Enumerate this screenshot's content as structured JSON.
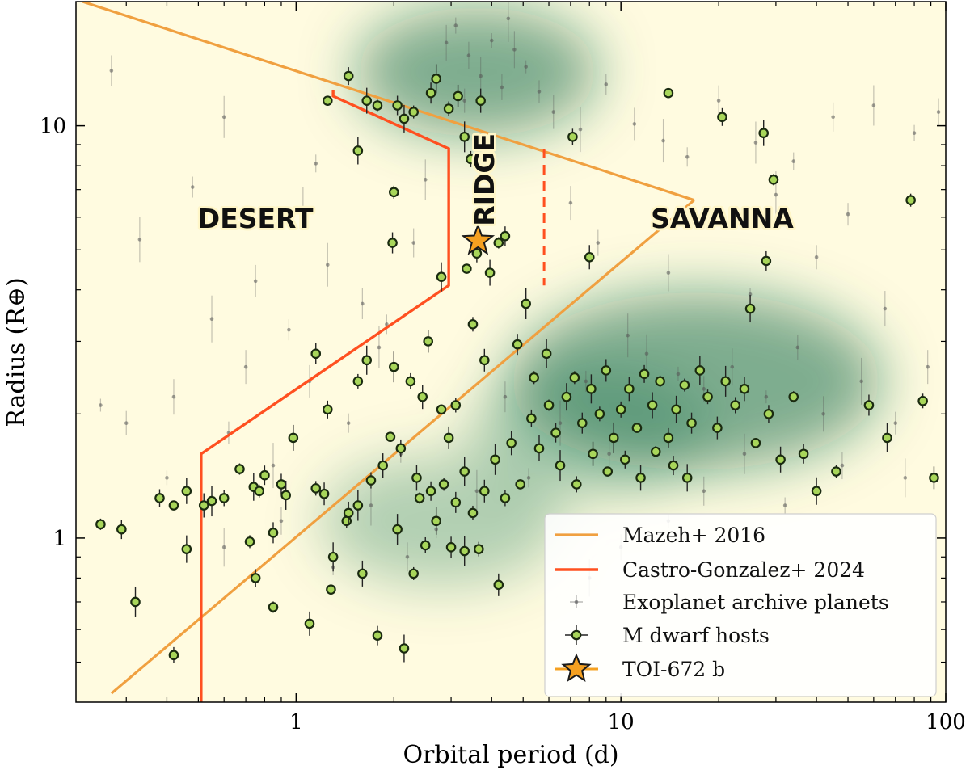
{
  "chart_data": {
    "type": "scatter",
    "xlabel": "Orbital period (d)",
    "ylabel": "Radius (R⊕)",
    "xscale": "log",
    "yscale": "log",
    "xlim": [
      0.21,
      100
    ],
    "ylim": [
      0.4,
      20
    ],
    "xticks": [
      {
        "value": 1,
        "label": "1"
      },
      {
        "value": 10,
        "label": "10"
      },
      {
        "value": 100,
        "label": "100"
      }
    ],
    "yticks": [
      {
        "value": 1,
        "label": "1"
      },
      {
        "value": 10,
        "label": "10"
      }
    ],
    "grid": false,
    "legend_position": "bottom-right",
    "colors": {
      "background": "#fffbe0",
      "mazeh": "#f0a040",
      "castro": "#ff5020",
      "archive": "#555555",
      "mdwarf_fill": "#a8d65a",
      "mdwarf_edge": "#1a2a10",
      "star": "#f5a020",
      "density": "#0e6b4a"
    },
    "region_labels": [
      {
        "text": "DESERT",
        "x": 0.75,
        "y": 5.9,
        "rotate": 0
      },
      {
        "text": "RIDGE",
        "x": 3.85,
        "y": 7.4,
        "rotate": -90
      },
      {
        "text": "SAVANNA",
        "x": 20.5,
        "y": 5.9,
        "rotate": 0
      }
    ],
    "series": [
      {
        "name": "Mazeh+ 2016",
        "kind": "boundary",
        "segments": [
          [
            [
              0.22,
              20
            ],
            [
              16.8,
              6.6
            ]
          ],
          [
            [
              16.8,
              6.6
            ],
            [
              0.27,
              0.42
            ]
          ]
        ]
      },
      {
        "name": "Castro-Gonzalez+ 2024",
        "kind": "boundary",
        "segments": [
          [
            [
              1.3,
              12.2
            ],
            [
              1.3,
              11.8
            ],
            [
              2.95,
              8.8
            ],
            [
              2.95,
              4.1
            ],
            [
              0.51,
              1.6
            ],
            [
              0.51,
              0.4
            ]
          ]
        ],
        "dashed_segment": [
          [
            5.8,
            8.8
          ],
          [
            5.8,
            4.1
          ]
        ]
      },
      {
        "name": "Exoplanet archive planets",
        "kind": "points",
        "density_clusters": [
          {
            "x": 3.6,
            "y": 13.5
          },
          {
            "x": 17,
            "y": 2.4
          },
          {
            "x": 8,
            "y": 1.8
          },
          {
            "x": 2.8,
            "y": 1.1
          }
        ],
        "points": [
          [
            0.25,
            2.1
          ],
          [
            0.3,
            1.9
          ],
          [
            0.42,
            2.2
          ],
          [
            0.55,
            3.4
          ],
          [
            0.62,
            1.8
          ],
          [
            0.7,
            2.6
          ],
          [
            0.85,
            1.5
          ],
          [
            0.95,
            3.2
          ],
          [
            1.1,
            2.4
          ],
          [
            1.25,
            4.6
          ],
          [
            1.45,
            1.9
          ],
          [
            1.6,
            3.7
          ],
          [
            1.8,
            2.9
          ],
          [
            2.1,
            1.6
          ],
          [
            2.3,
            5.2
          ],
          [
            2.5,
            7.4
          ],
          [
            3.1,
            17.5
          ],
          [
            3.4,
            14.8
          ],
          [
            3.7,
            13.2
          ],
          [
            4.0,
            16.1
          ],
          [
            4.3,
            12.4
          ],
          [
            4.7,
            15.3
          ],
          [
            5.1,
            13.9
          ],
          [
            3.3,
            11.5
          ],
          [
            2.9,
            15.9
          ],
          [
            4.5,
            18.2
          ],
          [
            5.6,
            12.1
          ],
          [
            6.2,
            10.8
          ],
          [
            7.5,
            9.8
          ],
          [
            9.0,
            12.6
          ],
          [
            11.0,
            10.1
          ],
          [
            13.5,
            9.2
          ],
          [
            16.0,
            8.4
          ],
          [
            20.0,
            11.5
          ],
          [
            26.0,
            9.1
          ],
          [
            34.0,
            8.2
          ],
          [
            45.0,
            10.5
          ],
          [
            60.0,
            11.2
          ],
          [
            80.0,
            9.6
          ],
          [
            95.0,
            10.8
          ],
          [
            12.0,
            2.8
          ],
          [
            15.0,
            2.5
          ],
          [
            18.0,
            2.3
          ],
          [
            22.0,
            2.6
          ],
          [
            28.0,
            2.2
          ],
          [
            35.0,
            2.9
          ],
          [
            42.0,
            2.0
          ],
          [
            55.0,
            2.4
          ],
          [
            70.0,
            1.9
          ],
          [
            88.0,
            2.6
          ],
          [
            6.5,
            1.9
          ],
          [
            7.8,
            2.4
          ],
          [
            9.2,
            1.6
          ],
          [
            10.5,
            3.1
          ],
          [
            5.2,
            1.4
          ],
          [
            4.4,
            2.2
          ],
          [
            3.6,
            1.3
          ],
          [
            2.7,
            1.05
          ],
          [
            2.2,
            0.9
          ],
          [
            1.7,
            1.2
          ],
          [
            1.3,
            0.85
          ],
          [
            0.9,
            1.1
          ],
          [
            0.6,
            0.95
          ],
          [
            0.4,
            1.4
          ],
          [
            8.5,
            5.2
          ],
          [
            14.0,
            4.4
          ],
          [
            25.0,
            3.9
          ],
          [
            40.0,
            4.8
          ],
          [
            65.0,
            3.6
          ],
          [
            30.0,
            6.8
          ],
          [
            50.0,
            6.1
          ],
          [
            7.0,
            6.5
          ],
          [
            0.33,
            5.3
          ],
          [
            0.48,
            7.1
          ],
          [
            0.75,
            4.2
          ],
          [
            1.05,
            6.3
          ],
          [
            1.9,
            3.3
          ],
          [
            0.27,
            13.6
          ],
          [
            0.6,
            10.5
          ],
          [
            1.15,
            8.1
          ],
          [
            18.0,
            1.3
          ],
          [
            24.0,
            1.6
          ],
          [
            32.0,
            1.2
          ],
          [
            48.0,
            1.5
          ],
          [
            75.0,
            1.4
          ],
          [
            14.0,
            1.1
          ],
          [
            10.0,
            0.95
          ],
          [
            8.0,
            0.8
          ]
        ]
      },
      {
        "name": "M dwarf hosts",
        "kind": "points",
        "points": [
          [
            1.25,
            11.5
          ],
          [
            1.45,
            13.2
          ],
          [
            1.65,
            11.5
          ],
          [
            1.78,
            11.2
          ],
          [
            2.05,
            11.2
          ],
          [
            2.15,
            10.4
          ],
          [
            2.3,
            10.8
          ],
          [
            2.6,
            12.0
          ],
          [
            2.7,
            13.0
          ],
          [
            2.95,
            11.0
          ],
          [
            3.15,
            11.8
          ],
          [
            3.3,
            9.4
          ],
          [
            3.45,
            8.3
          ],
          [
            3.7,
            11.5
          ],
          [
            3.35,
            4.5
          ],
          [
            3.6,
            4.9
          ],
          [
            3.95,
            4.4
          ],
          [
            4.2,
            5.2
          ],
          [
            4.4,
            5.4
          ],
          [
            1.55,
            8.7
          ],
          [
            2.0,
            6.9
          ],
          [
            1.98,
            5.2
          ],
          [
            2.8,
            4.3
          ],
          [
            3.5,
            3.3
          ],
          [
            3.8,
            2.7
          ],
          [
            5.1,
            3.7
          ],
          [
            7.1,
            9.4
          ],
          [
            8.0,
            4.8
          ],
          [
            14.0,
            12.0
          ],
          [
            20.5,
            10.5
          ],
          [
            27.5,
            9.6
          ],
          [
            29.5,
            7.4
          ],
          [
            28.0,
            4.7
          ],
          [
            25.0,
            3.6
          ],
          [
            78.0,
            6.6
          ],
          [
            1.15,
            2.8
          ],
          [
            1.65,
            2.7
          ],
          [
            1.55,
            2.4
          ],
          [
            2.55,
            3.0
          ],
          [
            2.0,
            2.6
          ],
          [
            2.25,
            2.4
          ],
          [
            2.45,
            2.2
          ],
          [
            2.8,
            2.05
          ],
          [
            1.25,
            2.05
          ],
          [
            0.98,
            1.75
          ],
          [
            0.67,
            1.47
          ],
          [
            0.8,
            1.42
          ],
          [
            0.74,
            1.33
          ],
          [
            0.77,
            1.3
          ],
          [
            0.9,
            1.35
          ],
          [
            0.93,
            1.27
          ],
          [
            1.15,
            1.32
          ],
          [
            1.22,
            1.28
          ],
          [
            0.55,
            1.23
          ],
          [
            0.6,
            1.25
          ],
          [
            0.52,
            1.2
          ],
          [
            0.42,
            1.2
          ],
          [
            0.38,
            1.25
          ],
          [
            0.46,
            1.3
          ],
          [
            0.25,
            1.08
          ],
          [
            0.29,
            1.05
          ],
          [
            0.46,
            0.94
          ],
          [
            0.72,
            0.98
          ],
          [
            0.85,
            1.03
          ],
          [
            1.3,
            0.9
          ],
          [
            1.43,
            1.1
          ],
          [
            1.45,
            1.15
          ],
          [
            1.55,
            1.2
          ],
          [
            1.7,
            1.38
          ],
          [
            1.85,
            1.5
          ],
          [
            1.95,
            1.76
          ],
          [
            2.1,
            1.65
          ],
          [
            2.35,
            1.4
          ],
          [
            2.4,
            1.25
          ],
          [
            2.6,
            1.3
          ],
          [
            2.7,
            1.1
          ],
          [
            2.85,
            1.35
          ],
          [
            3.1,
            1.22
          ],
          [
            3.3,
            1.45
          ],
          [
            3.5,
            1.15
          ],
          [
            3.8,
            1.3
          ],
          [
            4.1,
            1.55
          ],
          [
            4.4,
            1.25
          ],
          [
            4.6,
            1.7
          ],
          [
            4.9,
            1.35
          ],
          [
            5.3,
            1.95
          ],
          [
            5.6,
            1.65
          ],
          [
            6.0,
            2.1
          ],
          [
            6.3,
            1.8
          ],
          [
            6.8,
            2.2
          ],
          [
            7.2,
            2.45
          ],
          [
            7.6,
            1.9
          ],
          [
            8.1,
            2.3
          ],
          [
            8.6,
            2.0
          ],
          [
            9.0,
            2.55
          ],
          [
            9.5,
            1.75
          ],
          [
            10.0,
            2.05
          ],
          [
            10.6,
            2.3
          ],
          [
            11.2,
            1.85
          ],
          [
            11.8,
            2.5
          ],
          [
            12.5,
            2.1
          ],
          [
            13.2,
            2.4
          ],
          [
            14.0,
            1.75
          ],
          [
            14.8,
            2.05
          ],
          [
            15.7,
            2.35
          ],
          [
            16.5,
            1.9
          ],
          [
            17.5,
            2.55
          ],
          [
            18.5,
            2.2
          ],
          [
            19.8,
            1.85
          ],
          [
            21.0,
            2.4
          ],
          [
            22.5,
            2.1
          ],
          [
            24.0,
            2.3
          ],
          [
            26.0,
            1.7
          ],
          [
            28.5,
            2.0
          ],
          [
            31.0,
            1.55
          ],
          [
            34.0,
            2.2
          ],
          [
            36.5,
            1.6
          ],
          [
            40.0,
            1.3
          ],
          [
            46.0,
            1.45
          ],
          [
            58.0,
            2.1
          ],
          [
            66.0,
            1.75
          ],
          [
            85.0,
            2.15
          ],
          [
            92.0,
            1.4
          ],
          [
            6.5,
            1.5
          ],
          [
            7.3,
            1.35
          ],
          [
            8.2,
            1.6
          ],
          [
            9.1,
            1.45
          ],
          [
            10.3,
            1.55
          ],
          [
            11.5,
            1.4
          ],
          [
            12.8,
            1.62
          ],
          [
            14.5,
            1.5
          ],
          [
            16.0,
            1.4
          ],
          [
            5.4,
            2.45
          ],
          [
            4.8,
            2.95
          ],
          [
            5.9,
            2.8
          ],
          [
            3.1,
            2.1
          ],
          [
            2.95,
            1.75
          ],
          [
            0.32,
            0.7
          ],
          [
            0.42,
            0.52
          ],
          [
            1.1,
            0.62
          ],
          [
            1.28,
            0.75
          ],
          [
            0.75,
            0.8
          ],
          [
            1.6,
            0.82
          ],
          [
            0.85,
            0.68
          ],
          [
            1.78,
            0.58
          ],
          [
            2.15,
            0.54
          ],
          [
            2.3,
            0.82
          ],
          [
            3.0,
            0.95
          ],
          [
            3.3,
            0.93
          ],
          [
            3.65,
            0.94
          ],
          [
            4.2,
            0.77
          ],
          [
            2.05,
            1.05
          ],
          [
            2.5,
            0.96
          ]
        ]
      },
      {
        "name": "TOI-672 b",
        "kind": "highlight",
        "points": [
          [
            3.63,
            5.26
          ]
        ]
      }
    ]
  }
}
